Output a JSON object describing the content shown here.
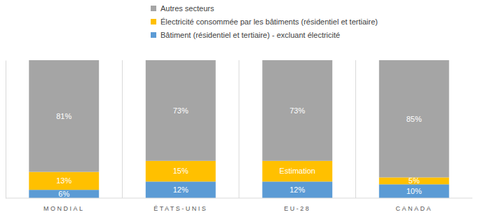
{
  "chart_data": {
    "type": "bar",
    "stacked": true,
    "data_labels": true,
    "tick_labels": "x",
    "legend": "top",
    "categories": [
      "MONDIAL",
      "ÉTATS-UNIS",
      "EU-28",
      "CANADA"
    ],
    "ylim": [
      0,
      100
    ],
    "series": [
      {
        "name": "Bâtiment (résidentiel et tertiaire) - excluant électricité",
        "color": "#5b9bd5",
        "values": [
          6,
          12,
          12,
          10
        ],
        "value_labels": [
          "6%",
          "12%",
          "12%",
          "10%"
        ]
      },
      {
        "name": "Électricité consommée par les bâtiments (résidentiel et tertiaire)",
        "color": "#ffc000",
        "values": [
          13,
          15,
          15,
          5
        ],
        "value_labels": [
          "13%",
          "15%",
          "Estimation",
          "5%"
        ]
      },
      {
        "name": "Autres secteurs",
        "color": "#a5a5a5",
        "values": [
          81,
          73,
          73,
          85
        ],
        "value_labels": [
          "81%",
          "73%",
          "73%",
          "85%"
        ]
      }
    ]
  }
}
